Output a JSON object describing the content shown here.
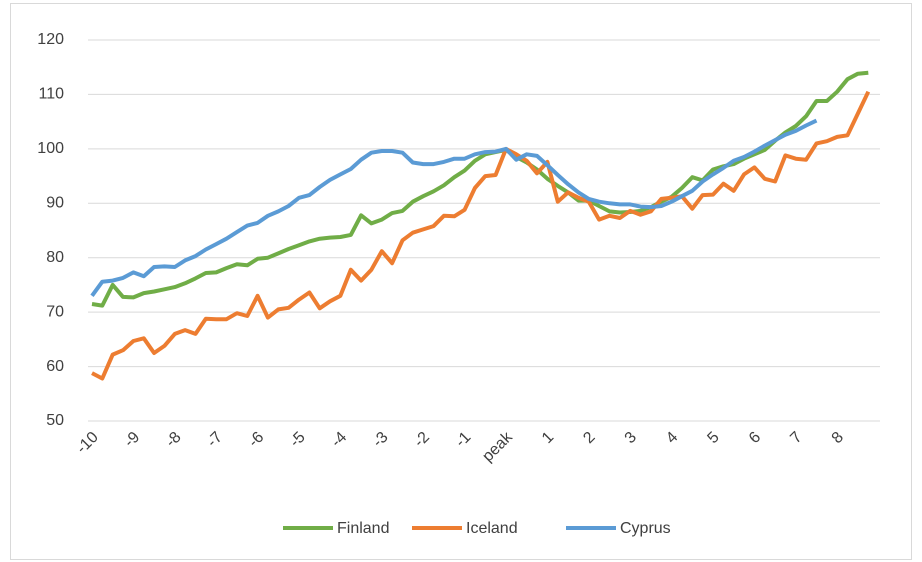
{
  "chart_data": {
    "type": "line",
    "categories": [
      "-10",
      null,
      null,
      null,
      "-9",
      null,
      null,
      null,
      "-8",
      null,
      null,
      null,
      "-7",
      null,
      null,
      null,
      "-6",
      null,
      null,
      null,
      "-5",
      null,
      null,
      null,
      "-4",
      null,
      null,
      null,
      "-3",
      null,
      null,
      null,
      "-2",
      null,
      null,
      null,
      "-1",
      null,
      null,
      null,
      "peak",
      null,
      null,
      null,
      "1",
      null,
      null,
      null,
      "2",
      null,
      null,
      null,
      "3",
      null,
      null,
      null,
      "4",
      null,
      null,
      null,
      "5",
      null,
      null,
      null,
      "6",
      null,
      null,
      null,
      "7",
      null,
      null,
      null,
      "8",
      null,
      null,
      null
    ],
    "series": [
      {
        "name": "Finland",
        "color": "#70ad47",
        "values": [
          71.5,
          71.2,
          75,
          72.8,
          72.7,
          73.5,
          73.8,
          74.2,
          74.6,
          75.3,
          76.2,
          77.2,
          77.3,
          78.1,
          78.8,
          78.6,
          79.8,
          80,
          80.8,
          81.6,
          82.3,
          83,
          83.5,
          83.7,
          83.8,
          84.2,
          87.8,
          86.3,
          87,
          88.2,
          88.6,
          90.3,
          91.3,
          92.2,
          93.3,
          94.8,
          96,
          97.8,
          99,
          99.4,
          99.8,
          98.5,
          97.5,
          96.2,
          94.5,
          93.2,
          92,
          90.5,
          90.5,
          89.5,
          88.5,
          88.3,
          88.4,
          88.6,
          89.3,
          90.3,
          91.2,
          92.8,
          94.8,
          94.2,
          96.2,
          96.8,
          97.2,
          98.2,
          99,
          99.8,
          101.5,
          103,
          104.2,
          106,
          108.8,
          108.8,
          110.5,
          112.8,
          113.8,
          114
        ]
      },
      {
        "name": "Iceland",
        "color": "#ed7d31",
        "values": [
          58.8,
          57.8,
          62.2,
          63,
          64.7,
          65.2,
          62.5,
          63.8,
          66,
          66.7,
          66,
          68.8,
          68.7,
          68.7,
          69.8,
          69.3,
          73,
          69,
          70.5,
          70.8,
          72.3,
          73.6,
          70.7,
          72,
          73,
          77.8,
          75.8,
          77.8,
          81.2,
          79,
          83.2,
          84.6,
          85.2,
          85.8,
          87.7,
          87.6,
          88.8,
          92.8,
          95,
          95.2,
          100,
          99,
          97.8,
          95.5,
          97.6,
          90.3,
          92,
          91,
          90.3,
          87,
          87.7,
          87.3,
          88.6,
          87.9,
          88.5,
          90.8,
          91,
          91.3,
          89,
          91.5,
          91.6,
          93.6,
          92.3,
          95.3,
          96.6,
          94.5,
          94,
          98.8,
          98.2,
          98,
          101,
          101.4,
          102.2,
          102.5,
          106.5,
          110.5
        ]
      },
      {
        "name": "Cyprus",
        "color": "#5b9bd5",
        "values": [
          73,
          75.6,
          75.8,
          76.3,
          77.3,
          76.6,
          78.3,
          78.4,
          78.3,
          79.5,
          80.3,
          81.5,
          82.5,
          83.5,
          84.7,
          85.9,
          86.4,
          87.7,
          88.5,
          89.5,
          91,
          91.5,
          93,
          94.3,
          95.3,
          96.3,
          98,
          99.3,
          99.6,
          99.6,
          99.3,
          97.5,
          97.2,
          97.2,
          97.6,
          98.2,
          98.2,
          99,
          99.4,
          99.5,
          100,
          98,
          99,
          98.7,
          97,
          95.2,
          93.5,
          92,
          90.8,
          90.3,
          90,
          89.8,
          89.8,
          89.4,
          89.3,
          89.5,
          90.3,
          91.3,
          92.3,
          94,
          95.3,
          96.5,
          97.8,
          98.5,
          99.5,
          100.6,
          101.6,
          102.6,
          103.3,
          104.3,
          105.2,
          null,
          null,
          null,
          null,
          null
        ]
      }
    ],
    "ylim": [
      50,
      120
    ],
    "yticks": [
      50,
      60,
      70,
      80,
      90,
      100,
      110,
      120
    ],
    "grid": true,
    "legend": "bottom"
  }
}
